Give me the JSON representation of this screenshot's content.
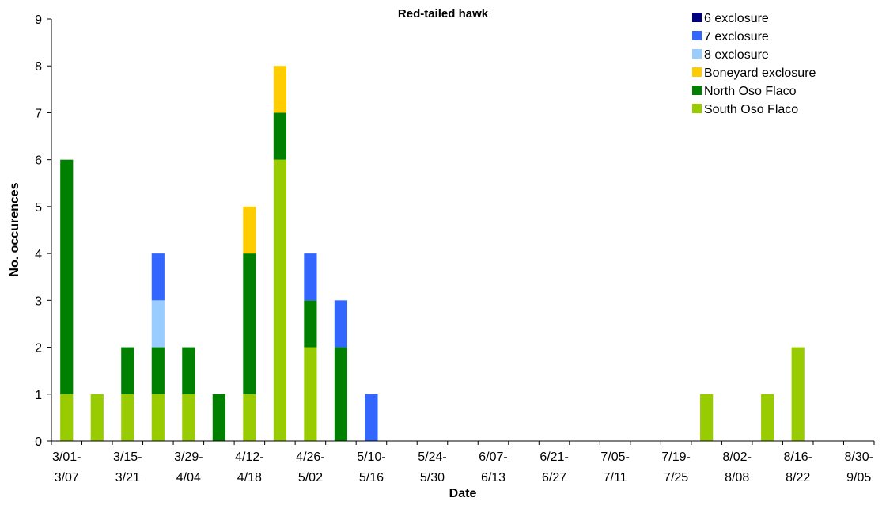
{
  "chart_data": {
    "type": "bar",
    "stacked": true,
    "title": "Red-tailed hawk",
    "xlabel": "Date",
    "ylabel": "No. occurences",
    "ylim": [
      0,
      9
    ],
    "yticks": [
      0,
      1,
      2,
      3,
      4,
      5,
      6,
      7,
      8,
      9
    ],
    "grid": false,
    "legend_position": "top-right",
    "x_tick_labels": [
      {
        "line1": "3/01-",
        "line2": "3/07"
      },
      {
        "line1": "3/15-",
        "line2": "3/21"
      },
      {
        "line1": "3/29-",
        "line2": "4/04"
      },
      {
        "line1": "4/12-",
        "line2": "4/18"
      },
      {
        "line1": "4/26-",
        "line2": "5/02"
      },
      {
        "line1": "5/10-",
        "line2": "5/16"
      },
      {
        "line1": "5/24-",
        "line2": "5/30"
      },
      {
        "line1": "6/07-",
        "line2": "6/13"
      },
      {
        "line1": "6/21-",
        "line2": "6/27"
      },
      {
        "line1": "7/05-",
        "line2": "7/11"
      },
      {
        "line1": "7/19-",
        "line2": "7/25"
      },
      {
        "line1": "8/02-",
        "line2": "8/08"
      },
      {
        "line1": "8/16-",
        "line2": "8/22"
      },
      {
        "line1": "8/30-",
        "line2": "9/05"
      }
    ],
    "categories": [
      "3/01-3/07",
      "3/08-3/14",
      "3/15-3/21",
      "3/22-3/28",
      "3/29-4/04",
      "4/05-4/11",
      "4/12-4/18",
      "4/19-4/25",
      "4/26-5/02",
      "5/03-5/09",
      "5/10-5/16",
      "5/17-5/23",
      "5/24-5/30",
      "5/31-6/06",
      "6/07-6/13",
      "6/14-6/20",
      "6/21-6/27",
      "6/28-7/04",
      "7/05-7/11",
      "7/12-7/18",
      "7/19-7/25",
      "7/26-8/01",
      "8/02-8/08",
      "8/09-8/15",
      "8/16-8/22",
      "8/23-8/29",
      "8/30-9/05"
    ],
    "series": [
      {
        "name": "South Oso Flaco",
        "color": "#99CC00",
        "values": [
          1,
          1,
          1,
          1,
          1,
          0,
          1,
          6,
          2,
          0,
          0,
          0,
          0,
          0,
          0,
          0,
          0,
          0,
          0,
          0,
          0,
          1,
          0,
          1,
          2,
          0,
          0
        ]
      },
      {
        "name": "North Oso Flaco",
        "color": "#008000",
        "values": [
          5,
          0,
          1,
          1,
          1,
          1,
          3,
          1,
          1,
          2,
          0,
          0,
          0,
          0,
          0,
          0,
          0,
          0,
          0,
          0,
          0,
          0,
          0,
          0,
          0,
          0,
          0
        ]
      },
      {
        "name": "Boneyard exclosure",
        "color": "#FFCC00",
        "values": [
          0,
          0,
          0,
          0,
          0,
          0,
          1,
          1,
          0,
          0,
          0,
          0,
          0,
          0,
          0,
          0,
          0,
          0,
          0,
          0,
          0,
          0,
          0,
          0,
          0,
          0,
          0
        ]
      },
      {
        "name": "8 exclosure",
        "color": "#99CCFF",
        "values": [
          0,
          0,
          0,
          1,
          0,
          0,
          0,
          0,
          0,
          0,
          0,
          0,
          0,
          0,
          0,
          0,
          0,
          0,
          0,
          0,
          0,
          0,
          0,
          0,
          0,
          0,
          0
        ]
      },
      {
        "name": "7 exclosure",
        "color": "#3366FF",
        "values": [
          0,
          0,
          0,
          1,
          0,
          0,
          0,
          0,
          1,
          1,
          1,
          0,
          0,
          0,
          0,
          0,
          0,
          0,
          0,
          0,
          0,
          0,
          0,
          0,
          0,
          0,
          0
        ]
      },
      {
        "name": "6 exclosure",
        "color": "#000080",
        "values": [
          0,
          0,
          0,
          0,
          0,
          0,
          0,
          0,
          0,
          0,
          0,
          0,
          0,
          0,
          0,
          0,
          0,
          0,
          0,
          0,
          0,
          0,
          0,
          0,
          0,
          0,
          0
        ]
      }
    ]
  }
}
